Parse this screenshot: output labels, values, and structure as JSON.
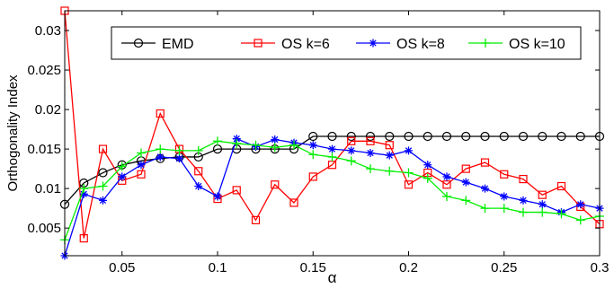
{
  "chart_data": {
    "type": "line",
    "xlabel": "α",
    "ylabel": "Orthogonality Index",
    "xlim": [
      0.02,
      0.3
    ],
    "ylim": [
      0.0015,
      0.0325
    ],
    "xticks": [
      {
        "value": 0.05,
        "label": "0.05"
      },
      {
        "value": 0.1,
        "label": "0.1"
      },
      {
        "value": 0.15,
        "label": "0.15"
      },
      {
        "value": 0.2,
        "label": "0.2"
      },
      {
        "value": 0.25,
        "label": "0.25"
      },
      {
        "value": 0.3,
        "label": "0.3"
      }
    ],
    "yticks": [
      {
        "value": 0.005,
        "label": "0.005"
      },
      {
        "value": 0.01,
        "label": "0.01"
      },
      {
        "value": 0.015,
        "label": "0.015"
      },
      {
        "value": 0.02,
        "label": "0.02"
      },
      {
        "value": 0.025,
        "label": "0.025"
      },
      {
        "value": 0.03,
        "label": "0.03"
      }
    ],
    "grid": false,
    "legend_position": "top",
    "x": [
      0.02,
      0.03,
      0.04,
      0.05,
      0.06,
      0.07,
      0.08,
      0.09,
      0.1,
      0.11,
      0.12,
      0.13,
      0.14,
      0.15,
      0.16,
      0.17,
      0.18,
      0.19,
      0.2,
      0.21,
      0.22,
      0.23,
      0.24,
      0.25,
      0.26,
      0.27,
      0.28,
      0.29,
      0.3
    ],
    "series": [
      {
        "name": "EMD",
        "color": "#000000",
        "marker": "circle",
        "values": [
          0.008,
          0.0107,
          0.012,
          0.013,
          0.0135,
          0.0138,
          0.014,
          0.014,
          0.015,
          0.015,
          0.015,
          0.015,
          0.015,
          0.0166,
          0.0166,
          0.0166,
          0.0166,
          0.0166,
          0.0166,
          0.0166,
          0.0166,
          0.0166,
          0.0166,
          0.0166,
          0.0166,
          0.0166,
          0.0166,
          0.0166,
          0.0166
        ]
      },
      {
        "name": "OS k=6",
        "color": "#ff0000",
        "marker": "square",
        "values": [
          0.0325,
          0.0037,
          0.015,
          0.011,
          0.0118,
          0.0195,
          0.015,
          0.0122,
          0.0087,
          0.0098,
          0.006,
          0.0105,
          0.0082,
          0.0115,
          0.013,
          0.016,
          0.016,
          0.0155,
          0.0105,
          0.012,
          0.0105,
          0.0125,
          0.0133,
          0.0118,
          0.0112,
          0.0092,
          0.0103,
          0.0077,
          0.0055
        ]
      },
      {
        "name": "OS k=8",
        "color": "#0000ff",
        "marker": "star",
        "values": [
          0.0015,
          0.0093,
          0.0085,
          0.0115,
          0.013,
          0.014,
          0.0138,
          0.0103,
          0.009,
          0.0163,
          0.0153,
          0.0162,
          0.0158,
          0.0155,
          0.015,
          0.0148,
          0.0145,
          0.0142,
          0.0148,
          0.013,
          0.0115,
          0.0108,
          0.01,
          0.009,
          0.0085,
          0.008,
          0.007,
          0.008,
          0.0075
        ]
      },
      {
        "name": "OS k=10",
        "color": "#00ee00",
        "marker": "plus",
        "values": [
          0.0035,
          0.01,
          0.0103,
          0.0128,
          0.0145,
          0.015,
          0.0148,
          0.0148,
          0.016,
          0.0157,
          0.0155,
          0.0152,
          0.0155,
          0.0143,
          0.014,
          0.0135,
          0.0125,
          0.0122,
          0.012,
          0.0113,
          0.009,
          0.0085,
          0.0075,
          0.0075,
          0.007,
          0.007,
          0.0068,
          0.006,
          0.0065
        ]
      }
    ]
  }
}
